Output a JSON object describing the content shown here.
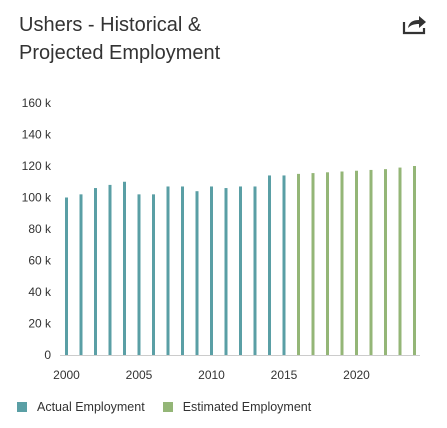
{
  "header": {
    "title_line1": "Ushers - Historical &",
    "title_line2": "Projected Employment",
    "share_icon": "share-arrow-icon"
  },
  "colors": {
    "actual": "#5a9fa5",
    "estimated": "#94b677",
    "axis_text": "#333333",
    "background": "#ffffff"
  },
  "legend": {
    "actual_label": "Actual Employment",
    "estimated_label": "Estimated Employment"
  },
  "chart_data": {
    "type": "bar",
    "title": "Ushers - Historical & Projected Employment",
    "xlabel": "",
    "ylabel": "",
    "ylim": [
      0,
      160000
    ],
    "y_ticks": [
      0,
      20000,
      40000,
      60000,
      80000,
      100000,
      120000,
      140000,
      160000
    ],
    "y_tick_labels": [
      "0",
      "20 k",
      "40 k",
      "60 k",
      "80 k",
      "100 k",
      "120 k",
      "140 k",
      "160 k"
    ],
    "x_ticks": [
      2000,
      2005,
      2010,
      2015,
      2020
    ],
    "grid": false,
    "legend_position": "bottom-left",
    "series": [
      {
        "name": "Actual Employment",
        "color": "#5a9fa5",
        "x": [
          2000,
          2001,
          2002,
          2003,
          2004,
          2005,
          2006,
          2007,
          2008,
          2009,
          2010,
          2011,
          2012,
          2013,
          2014,
          2015
        ],
        "values": [
          100000,
          102000,
          106000,
          108000,
          110000,
          102000,
          102000,
          107000,
          107000,
          104000,
          107000,
          106000,
          107000,
          107000,
          114000,
          114000
        ]
      },
      {
        "name": "Estimated Employment",
        "color": "#94b677",
        "x": [
          2016,
          2017,
          2018,
          2019,
          2020,
          2021,
          2022,
          2023,
          2024
        ],
        "values": [
          115000,
          115500,
          116000,
          116500,
          117000,
          117500,
          118000,
          119000,
          120000
        ]
      }
    ]
  }
}
